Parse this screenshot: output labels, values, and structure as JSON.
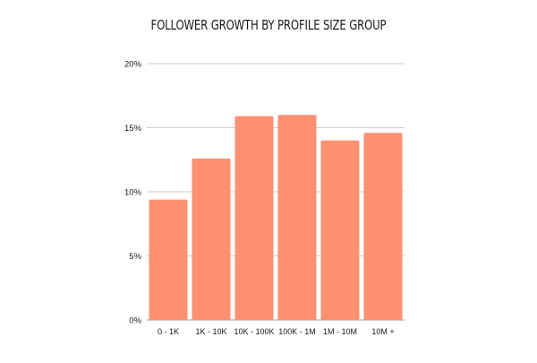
{
  "chart_data": {
    "type": "bar",
    "title": "FOLLOWER GROWTH BY PROFILE SIZE GROUP",
    "xlabel": "",
    "ylabel": "",
    "categories": [
      "0 - 1K",
      "1K - 10K",
      "10K - 100K",
      "100K - 1M",
      "1M - 10M",
      "10M +"
    ],
    "values": [
      9.4,
      12.6,
      15.9,
      16.0,
      14.0,
      14.6
    ],
    "ylim": [
      0,
      20
    ],
    "yticks": [
      0,
      5,
      10,
      15,
      20
    ],
    "ytick_labels": [
      "0%",
      "5%",
      "10%",
      "15%",
      "20%"
    ],
    "grid": true,
    "legend": "none",
    "colors": {
      "bar": "#FF9071",
      "grid": "#cccccc",
      "text": "#1a1a1a"
    }
  }
}
